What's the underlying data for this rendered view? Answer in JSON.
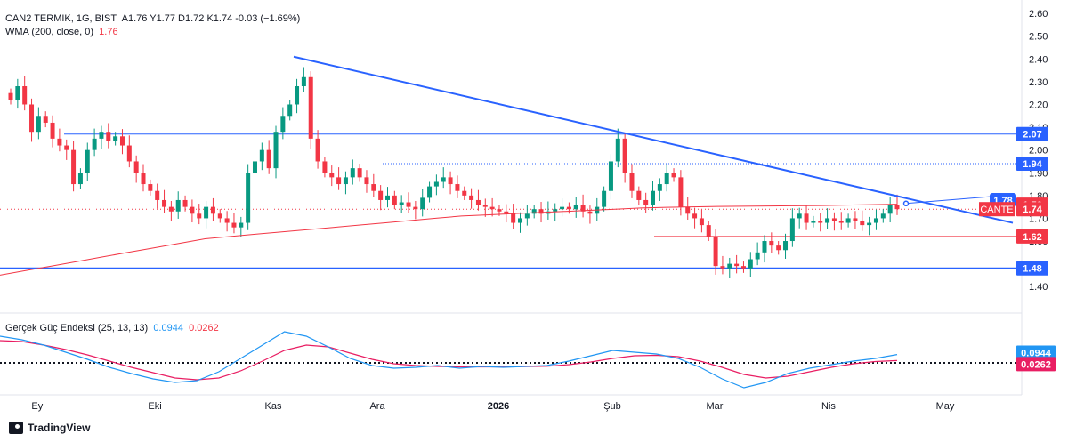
{
  "header": {
    "symbol_line": "CAN2 TERMIK, 1G, BIST",
    "ohlc": "A1.76  Y1.77  D1.72  K1.74  -0.03 (−1.69%)",
    "wma_label": "WMA (200, close, 0)",
    "wma_value": "1.76",
    "indicator_label": "Gerçek Güç Endeksi (25, 13, 13)",
    "tsi_value": "0.0944",
    "signal_value": "0.0262"
  },
  "footer": {
    "brand": "TradingView"
  },
  "colors": {
    "up": "#089981",
    "down": "#f23645",
    "wma": "#f23645",
    "trend": "#2962ff",
    "tsi": "#2196f3",
    "signal": "#e91e63"
  },
  "chart_data": {
    "type": "candlestick",
    "symbol": "CAN2 TERMIK",
    "price_axis": {
      "ticks": [
        "2.60",
        "2.50",
        "2.40",
        "2.30",
        "2.20",
        "2.10",
        "2.00",
        "1.90",
        "1.80",
        "1.70",
        "1.60",
        "1.50",
        "1.40"
      ],
      "range": [
        1.35,
        2.62
      ]
    },
    "time_axis": {
      "ticks": [
        "Eyl",
        "Eki",
        "Kas",
        "Ara",
        "2026",
        "Şub",
        "Mar",
        "Nis",
        "May"
      ]
    },
    "price_badges": [
      {
        "label": "2.07",
        "price": 2.07,
        "color": "#2962ff"
      },
      {
        "label": "1.94",
        "price": 1.94,
        "color": "#2962ff"
      },
      {
        "label": "1.78",
        "price": 1.78,
        "color": "#2962ff"
      },
      {
        "label": "1.76",
        "price": 1.76,
        "color": "#f23645"
      },
      {
        "label": "1.74",
        "price": 1.74,
        "color": "#f23645",
        "tag": "CANTE"
      },
      {
        "label": "1.62",
        "price": 1.62,
        "color": "#f23645"
      },
      {
        "label": "1.48",
        "price": 1.48,
        "color": "#2962ff"
      }
    ],
    "horizontal_levels": [
      2.07,
      1.94,
      1.62,
      1.48
    ],
    "trendline": {
      "from": {
        "date": "Kas",
        "price": 2.41
      },
      "to": {
        "date": "May",
        "price": 1.68
      }
    },
    "closes": [
      2.22,
      2.28,
      2.2,
      2.08,
      2.15,
      2.12,
      2.05,
      2.02,
      2.0,
      1.85,
      1.9,
      2.0,
      2.05,
      2.08,
      2.04,
      2.06,
      2.02,
      1.95,
      1.9,
      1.85,
      1.82,
      1.78,
      1.75,
      1.73,
      1.78,
      1.75,
      1.72,
      1.7,
      1.75,
      1.72,
      1.7,
      1.68,
      1.66,
      1.68,
      1.9,
      1.95,
      2.0,
      1.92,
      2.08,
      2.15,
      2.2,
      2.28,
      2.32,
      2.05,
      1.95,
      1.9,
      1.88,
      1.85,
      1.88,
      1.92,
      1.88,
      1.85,
      1.82,
      1.78,
      1.8,
      1.76,
      1.77,
      1.75,
      1.74,
      1.79,
      1.84,
      1.86,
      1.88,
      1.85,
      1.82,
      1.8,
      1.78,
      1.76,
      1.75,
      1.74,
      1.73,
      1.72,
      1.68,
      1.7,
      1.72,
      1.74,
      1.72,
      1.73,
      1.74,
      1.75,
      1.74,
      1.76,
      1.73,
      1.72,
      1.75,
      1.82,
      1.95,
      2.05,
      1.9,
      1.82,
      1.78,
      1.76,
      1.82,
      1.85,
      1.9,
      1.88,
      1.75,
      1.72,
      1.7,
      1.67,
      1.62,
      1.49,
      1.48,
      1.5,
      1.49,
      1.48,
      1.52,
      1.55,
      1.6,
      1.58,
      1.56,
      1.6,
      1.7,
      1.72,
      1.68,
      1.69,
      1.68,
      1.7,
      1.69,
      1.68,
      1.7,
      1.69,
      1.67,
      1.68,
      1.7,
      1.72,
      1.76,
      1.74
    ],
    "wma": [
      1.45,
      1.47,
      1.49,
      1.51,
      1.53,
      1.55,
      1.57,
      1.59,
      1.61,
      1.62,
      1.63,
      1.64,
      1.65,
      1.66,
      1.67,
      1.68,
      1.69,
      1.7,
      1.71,
      1.715,
      1.72,
      1.725,
      1.73,
      1.735,
      1.74,
      1.745,
      1.748,
      1.75,
      1.752,
      1.753,
      1.754,
      1.755,
      1.756,
      1.758,
      1.76,
      1.762
    ],
    "tsi_panel": {
      "title": "Gerçek Güç Endeksi (25, 13, 13)",
      "tsi": [
        0.3,
        0.26,
        0.2,
        0.12,
        0.04,
        -0.05,
        -0.12,
        -0.18,
        -0.22,
        -0.2,
        -0.1,
        0.05,
        0.2,
        0.35,
        0.3,
        0.18,
        0.05,
        -0.03,
        -0.06,
        -0.05,
        -0.03,
        -0.06,
        -0.04,
        -0.05,
        -0.04,
        -0.03,
        0.02,
        0.08,
        0.14,
        0.12,
        0.1,
        0.05,
        -0.05,
        -0.18,
        -0.28,
        -0.22,
        -0.12,
        -0.06,
        -0.02,
        0.02,
        0.05,
        0.0944
      ],
      "signal": [
        0.25,
        0.24,
        0.2,
        0.15,
        0.09,
        0.02,
        -0.05,
        -0.11,
        -0.17,
        -0.19,
        -0.17,
        -0.09,
        0.02,
        0.14,
        0.2,
        0.18,
        0.11,
        0.04,
        -0.01,
        -0.03,
        -0.04,
        -0.045,
        -0.045,
        -0.045,
        -0.042,
        -0.038,
        -0.02,
        0.01,
        0.05,
        0.08,
        0.085,
        0.07,
        0.02,
        -0.05,
        -0.13,
        -0.17,
        -0.15,
        -0.1,
        -0.05,
        -0.01,
        0.015,
        0.0262
      ]
    }
  }
}
